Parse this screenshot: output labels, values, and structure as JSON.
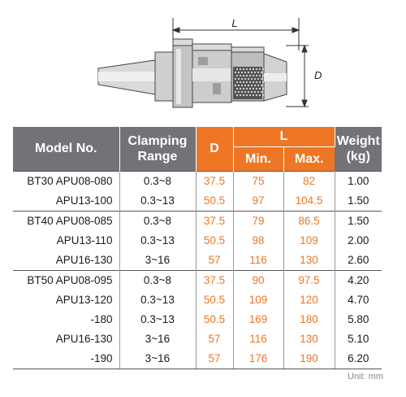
{
  "drawing": {
    "length_label": "L",
    "diameter_label": "D"
  },
  "table": {
    "headers": {
      "model": "Model No.",
      "clamping_line1": "Clamping",
      "clamping_line2": "Range",
      "d": "D",
      "l": "L",
      "min": "Min.",
      "max": "Max.",
      "weight_line1": "Weight",
      "weight_line2": "(kg)"
    },
    "rows": [
      {
        "model": "BT30 APU08-080",
        "range": "0.3~8",
        "d": "37.5",
        "min": "75",
        "max": "82",
        "weight": "1.00"
      },
      {
        "model": "APU13-100",
        "range": "0.3~13",
        "d": "50.5",
        "min": "97",
        "max": "104.5",
        "weight": "1.50"
      },
      {
        "model": "BT40 APU08-085",
        "range": "0.3~8",
        "d": "37.5",
        "min": "79",
        "max": "86.5",
        "weight": "1.50"
      },
      {
        "model": "APU13-110",
        "range": "0.3~13",
        "d": "50.5",
        "min": "98",
        "max": "109",
        "weight": "2.00"
      },
      {
        "model": "APU16-130",
        "range": "3~16",
        "d": "57",
        "min": "116",
        "max": "130",
        "weight": "2.60"
      },
      {
        "model": "BT50 APU08-095",
        "range": "0.3~8",
        "d": "37.5",
        "min": "90",
        "max": "97.5",
        "weight": "4.20"
      },
      {
        "model": "APU13-120",
        "range": "0.3~13",
        "d": "50.5",
        "min": "109",
        "max": "120",
        "weight": "4.70"
      },
      {
        "model": "-180",
        "range": "0.3~13",
        "d": "50.5",
        "min": "169",
        "max": "180",
        "weight": "5.80"
      },
      {
        "model": "APU16-130",
        "range": "3~16",
        "d": "57",
        "min": "116",
        "max": "130",
        "weight": "5.10"
      },
      {
        "model": "-190",
        "range": "3~16",
        "d": "57",
        "min": "176",
        "max": "190",
        "weight": "6.20"
      }
    ]
  },
  "unit_note": "Unit: mm",
  "colors": {
    "header_gray": "#727376",
    "header_orange": "#ee7624",
    "value_orange": "#ee7624"
  }
}
